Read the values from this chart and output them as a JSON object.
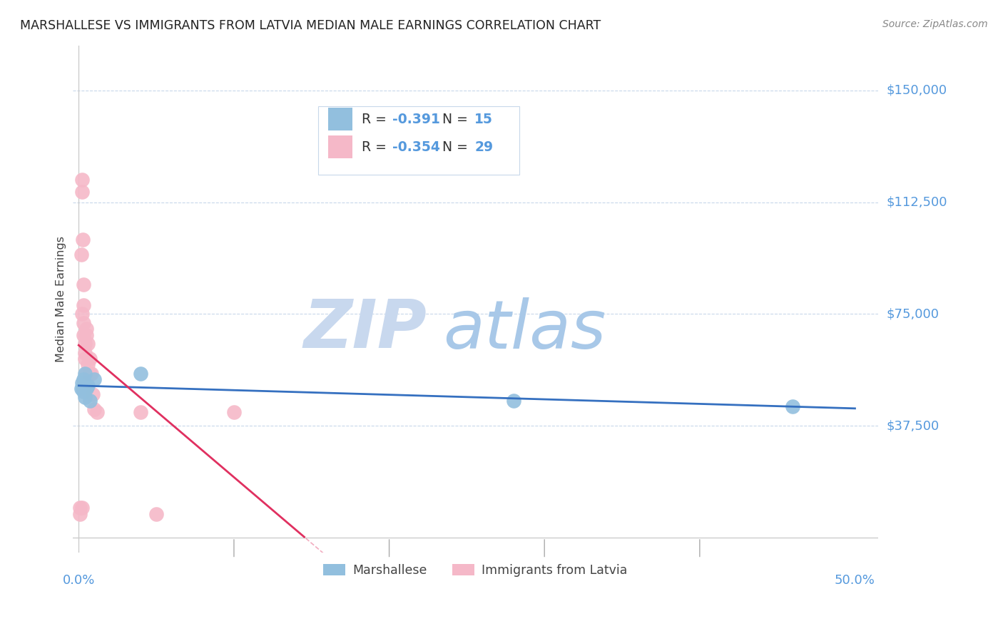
{
  "title": "MARSHALLESE VS IMMIGRANTS FROM LATVIA MEDIAN MALE EARNINGS CORRELATION CHART",
  "source": "Source: ZipAtlas.com",
  "ylabel": "Median Male Earnings",
  "ytick_labels": [
    "$37,500",
    "$75,000",
    "$112,500",
    "$150,000"
  ],
  "ytick_values": [
    37500,
    75000,
    112500,
    150000
  ],
  "ylim": [
    -5000,
    165000
  ],
  "xlim": [
    -0.004,
    0.515
  ],
  "marshallese_x": [
    0.0015,
    0.002,
    0.0025,
    0.003,
    0.003,
    0.0035,
    0.004,
    0.004,
    0.005,
    0.006,
    0.007,
    0.01,
    0.04,
    0.28,
    0.46
  ],
  "marshallese_y": [
    50000,
    52000,
    50000,
    49000,
    53000,
    51000,
    55000,
    47000,
    50000,
    51000,
    46000,
    53000,
    55000,
    46000,
    44000
  ],
  "latvia_x": [
    0.001,
    0.001,
    0.0015,
    0.002,
    0.002,
    0.002,
    0.0025,
    0.003,
    0.003,
    0.003,
    0.003,
    0.004,
    0.004,
    0.004,
    0.005,
    0.005,
    0.005,
    0.006,
    0.006,
    0.007,
    0.007,
    0.008,
    0.009,
    0.01,
    0.012,
    0.05,
    0.1,
    0.002,
    0.04
  ],
  "latvia_y": [
    10000,
    8000,
    95000,
    120000,
    116000,
    75000,
    100000,
    85000,
    78000,
    72000,
    68000,
    65000,
    62000,
    60000,
    70000,
    68000,
    55000,
    65000,
    58000,
    60000,
    55000,
    55000,
    48000,
    43000,
    42000,
    8000,
    42000,
    10000,
    42000
  ],
  "blue_color": "#92bfde",
  "pink_color": "#f5b8c8",
  "blue_line_color": "#3570c0",
  "pink_line_color": "#e03060",
  "grid_color": "#c8d8ea",
  "watermark_zip_color": "#c8d8ee",
  "watermark_atlas_color": "#a8c8e8",
  "text_color": "#5599dd",
  "source_color": "#888888",
  "title_color": "#222222",
  "ylabel_color": "#444444",
  "legend_text_color": "#333333",
  "r_marshallese": "-0.391",
  "n_marshallese": "15",
  "r_latvia": "-0.354",
  "n_latvia": "29"
}
